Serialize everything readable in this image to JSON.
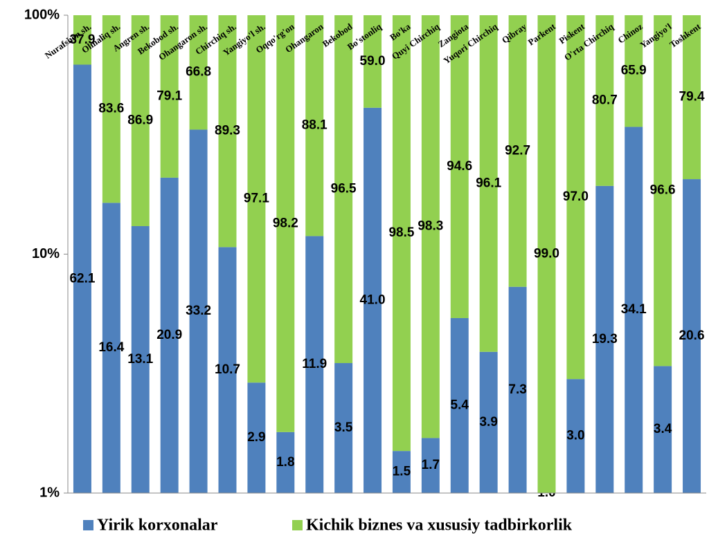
{
  "chart_data": {
    "type": "stacked_bar",
    "log_scale": true,
    "categories": [
      "Nurafshon sh.",
      "Olmaliq sh.",
      "Angren sh.",
      "Bekobod sh.",
      "Ohangaron sh.",
      "Chirchiq sh.",
      "Yangiyo'l sh.",
      "Oqqo'rg'on",
      "Ohangaron",
      "Bekobod",
      "Bo'stonliq",
      "Bo'ka",
      "Quyi Chirchiq",
      "Zangiota",
      "Yuqori Chirchiq",
      "Qibray",
      "Parkent",
      "Piskent",
      "O'rta Chirchiq",
      "Chinoz",
      "Yangiyo'l",
      "Toshkent"
    ],
    "series": [
      {
        "name": "Yirik korxonalar",
        "color": "#4f81bd",
        "values": [
          62.1,
          16.4,
          13.1,
          20.9,
          33.2,
          10.7,
          2.9,
          1.8,
          11.9,
          3.5,
          41.0,
          1.5,
          1.7,
          5.4,
          3.9,
          7.3,
          1.0,
          3.0,
          19.3,
          34.1,
          3.4,
          20.6
        ],
        "value_labels": [
          "62.1",
          "16.4",
          "13.1",
          "20.9",
          "33.2",
          "10.7",
          "2.9",
          "1.8",
          "11.9",
          "3.5",
          "41.0",
          "1.5",
          "1.7",
          "5.4",
          "3.9",
          "7.3",
          "1.0",
          "3.0",
          "19.3",
          "34.1",
          "3.4",
          "20.6"
        ]
      },
      {
        "name": "Kichik biznes va xususiy tadbirkorlik",
        "color": "#92d050",
        "values": [
          37.9,
          83.6,
          86.9,
          79.1,
          66.8,
          89.3,
          97.1,
          98.2,
          88.1,
          96.5,
          59.0,
          98.5,
          98.3,
          94.6,
          96.1,
          92.7,
          99.0,
          97.0,
          80.7,
          65.9,
          96.6,
          79.4
        ],
        "value_labels": [
          "37.9",
          "83.6",
          "86.9",
          "79.1",
          "66.8",
          "89.3",
          "97.1",
          "98.2",
          "88.1",
          "96.5",
          "59.0",
          "98.5",
          "98.3",
          "94.6",
          "96.1",
          "92.7",
          "99.0",
          "97.0",
          "80.7",
          "65.9",
          "96.6",
          "79.4"
        ]
      }
    ],
    "ylim": [
      1,
      100
    ],
    "yticks": [
      {
        "value": 1,
        "label": "1%"
      },
      {
        "value": 10,
        "label": "10%"
      },
      {
        "value": 100,
        "label": "100%"
      }
    ],
    "legend": "bottom"
  }
}
